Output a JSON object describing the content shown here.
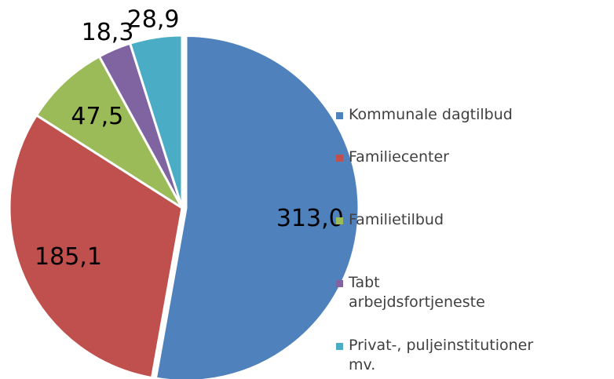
{
  "chart_data": {
    "type": "pie",
    "categories": [
      "Kommunale dagtilbud",
      "Familiecenter",
      "Familietilbud",
      "Tabt arbejdsfortjeneste",
      "Privat-, puljeinstitutioner mv."
    ],
    "values": [
      313.0,
      185.1,
      47.5,
      18.3,
      28.9
    ],
    "value_labels": [
      "313,0",
      "185,1",
      "47,5",
      "18,3",
      "28,9"
    ],
    "colors": [
      "#4f81bd",
      "#c0504d",
      "#9bbb59",
      "#8064a2",
      "#4bacc6"
    ],
    "legend": "right"
  }
}
